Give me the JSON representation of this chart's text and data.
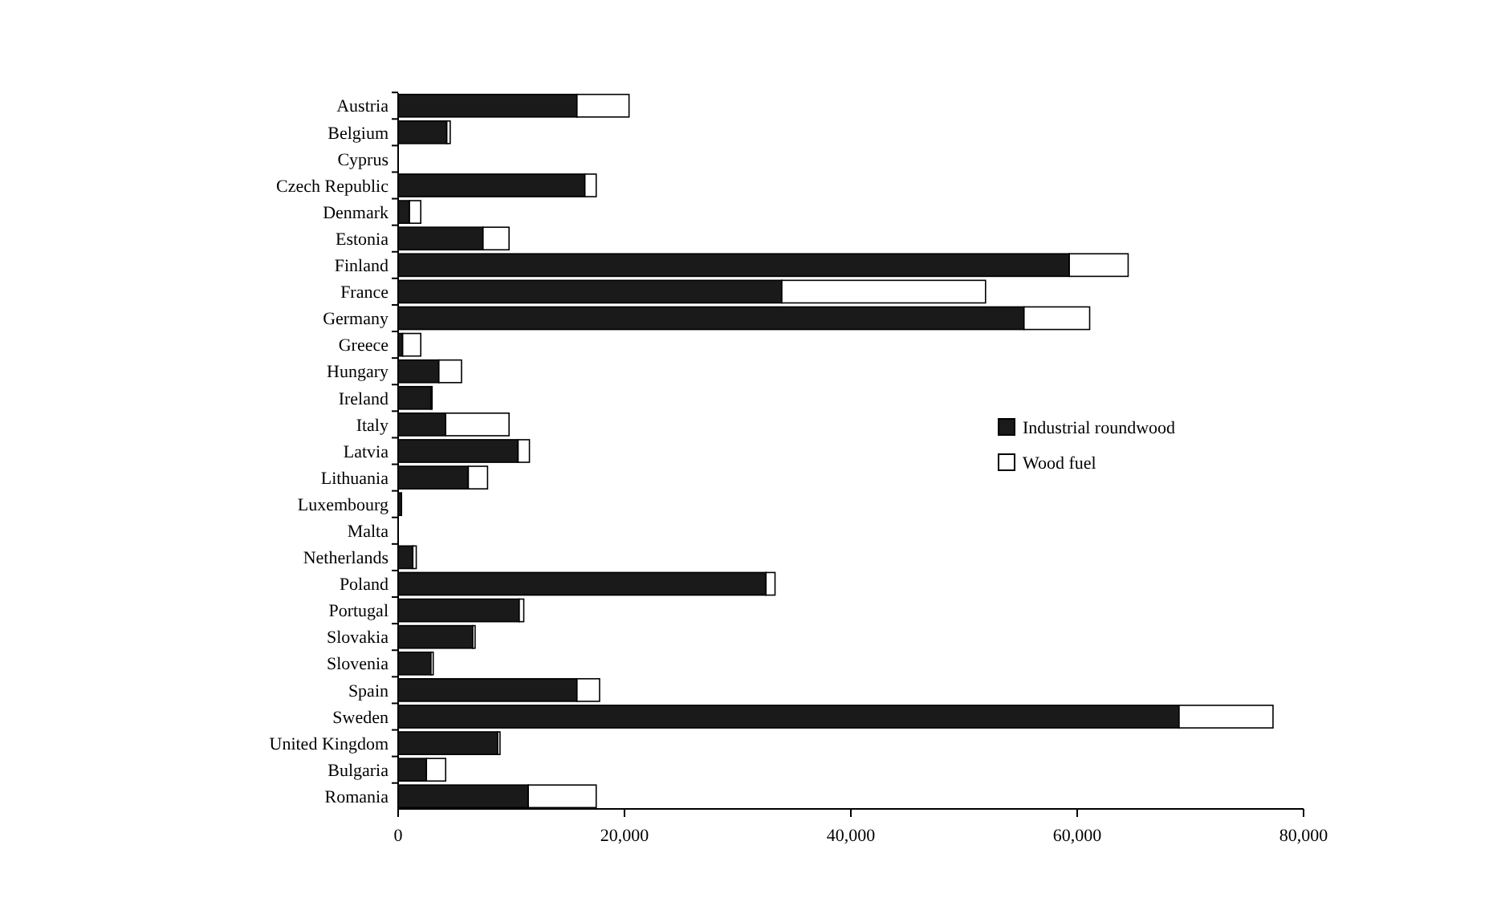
{
  "chart_data": {
    "type": "bar",
    "orientation": "horizontal",
    "stacked": true,
    "categories": [
      "Austria",
      "Belgium",
      "Cyprus",
      "Czech Republic",
      "Denmark",
      "Estonia",
      "Finland",
      "France",
      "Germany",
      "Greece",
      "Hungary",
      "Ireland",
      "Italy",
      "Latvia",
      "Lithuania",
      "Luxembourg",
      "Malta",
      "Netherlands",
      "Poland",
      "Portugal",
      "Slovakia",
      "Slovenia",
      "Spain",
      "Sweden",
      "United Kingdom",
      "Bulgaria",
      "Romania"
    ],
    "series": [
      {
        "name": "Industrial roundwood",
        "color": "#1a1a1a",
        "values": [
          15800,
          4300,
          0,
          16500,
          1000,
          7500,
          59300,
          33900,
          55300,
          400,
          3600,
          2900,
          4200,
          10600,
          6200,
          300,
          0,
          1300,
          32500,
          10700,
          6600,
          2900,
          15800,
          69000,
          8800,
          2500,
          11500
        ]
      },
      {
        "name": "Wood fuel",
        "color": "#ffffff",
        "values": [
          4600,
          300,
          0,
          1000,
          1000,
          2300,
          5200,
          18000,
          5800,
          1600,
          2000,
          100,
          5600,
          1000,
          1700,
          0,
          0,
          300,
          800,
          400,
          200,
          200,
          2000,
          8300,
          200,
          1700,
          6000
        ]
      }
    ],
    "xlim": [
      0,
      80000
    ],
    "xticks": [
      0,
      {
        "value": 20000,
        "label": "20,000"
      },
      {
        "value": 40000,
        "label": "40,000"
      },
      {
        "value": 60000,
        "label": "60,000"
      },
      {
        "value": 80000,
        "label": "80,000"
      }
    ],
    "grid": false,
    "legend": "right"
  }
}
